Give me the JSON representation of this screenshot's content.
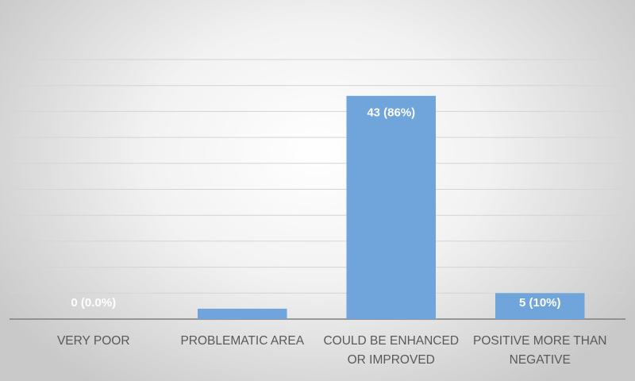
{
  "chart_data": {
    "type": "bar",
    "categories": [
      "VERY POOR",
      "PROBLEMATIC AREA",
      "COULD BE ENHANCED OR IMPROVED",
      "POSITIVE MORE THAN NEGATIVE"
    ],
    "values": [
      0,
      2,
      43,
      5
    ],
    "value_labels": [
      "0 (0.0%)",
      null,
      "43 (86%)",
      "5 (10%)"
    ],
    "color": "#6fa5db",
    "ylim": [
      0,
      50
    ],
    "yticks": [
      0,
      5,
      10,
      15,
      20,
      25,
      30,
      35,
      40,
      45,
      50
    ],
    "grid": true
  }
}
